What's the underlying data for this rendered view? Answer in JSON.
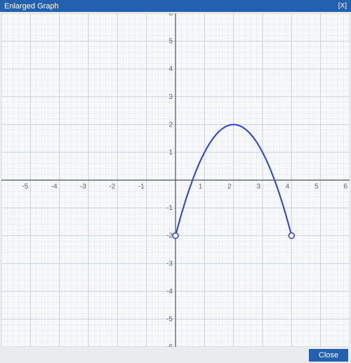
{
  "window": {
    "title": "Enlarged Graph",
    "close_x": "[X]",
    "close_button": "Close",
    "titlebar_bg": "#2360b0",
    "titlebar_fg": "#ffffff",
    "body_bg": "#f6f8fa"
  },
  "chart": {
    "type": "line",
    "xlim": [
      -6,
      6
    ],
    "ylim": [
      -6,
      6
    ],
    "xtick_step": 1,
    "ytick_step": 1,
    "minor_grid_divisions": 5,
    "major_grid_color": "#c9d1da",
    "minor_grid_color": "#e2e7ec",
    "axis_color": "#4a5260",
    "tick_label_color": "#5a6270",
    "tick_label_fontsize": 10,
    "background_color": "#f6f8fa",
    "series": {
      "color": "#2b3fe0",
      "line_width": 2,
      "vertex": [
        2,
        2
      ],
      "left_endpoint": {
        "x": 0,
        "y": -2,
        "open": true
      },
      "right_endpoint": {
        "x": 4,
        "y": -2,
        "open": true
      },
      "open_marker": {
        "radius": 4,
        "stroke": "#2b3fe0",
        "fill": "#f6f8fa",
        "stroke_width": 1.5
      },
      "points": [
        {
          "x": 0.0,
          "y": -2.0
        },
        {
          "x": 0.1,
          "y": -1.61
        },
        {
          "x": 0.2,
          "y": -1.24
        },
        {
          "x": 0.3,
          "y": -0.89
        },
        {
          "x": 0.4,
          "y": -0.56
        },
        {
          "x": 0.5,
          "y": -0.25
        },
        {
          "x": 0.6,
          "y": 0.04
        },
        {
          "x": 0.7,
          "y": 0.31
        },
        {
          "x": 0.8,
          "y": 0.56
        },
        {
          "x": 0.9,
          "y": 0.79
        },
        {
          "x": 1.0,
          "y": 1.0
        },
        {
          "x": 1.1,
          "y": 1.19
        },
        {
          "x": 1.2,
          "y": 1.36
        },
        {
          "x": 1.3,
          "y": 1.51
        },
        {
          "x": 1.4,
          "y": 1.64
        },
        {
          "x": 1.5,
          "y": 1.75
        },
        {
          "x": 1.6,
          "y": 1.84
        },
        {
          "x": 1.7,
          "y": 1.91
        },
        {
          "x": 1.8,
          "y": 1.96
        },
        {
          "x": 1.9,
          "y": 1.99
        },
        {
          "x": 2.0,
          "y": 2.0
        },
        {
          "x": 2.1,
          "y": 1.99
        },
        {
          "x": 2.2,
          "y": 1.96
        },
        {
          "x": 2.3,
          "y": 1.91
        },
        {
          "x": 2.4,
          "y": 1.84
        },
        {
          "x": 2.5,
          "y": 1.75
        },
        {
          "x": 2.6,
          "y": 1.64
        },
        {
          "x": 2.7,
          "y": 1.51
        },
        {
          "x": 2.8,
          "y": 1.36
        },
        {
          "x": 2.9,
          "y": 1.19
        },
        {
          "x": 3.0,
          "y": 1.0
        },
        {
          "x": 3.1,
          "y": 0.79
        },
        {
          "x": 3.2,
          "y": 0.56
        },
        {
          "x": 3.3,
          "y": 0.31
        },
        {
          "x": 3.4,
          "y": 0.04
        },
        {
          "x": 3.5,
          "y": -0.25
        },
        {
          "x": 3.6,
          "y": -0.56
        },
        {
          "x": 3.7,
          "y": -0.89
        },
        {
          "x": 3.8,
          "y": -1.24
        },
        {
          "x": 3.9,
          "y": -1.61
        },
        {
          "x": 4.0,
          "y": -2.0
        }
      ]
    }
  }
}
